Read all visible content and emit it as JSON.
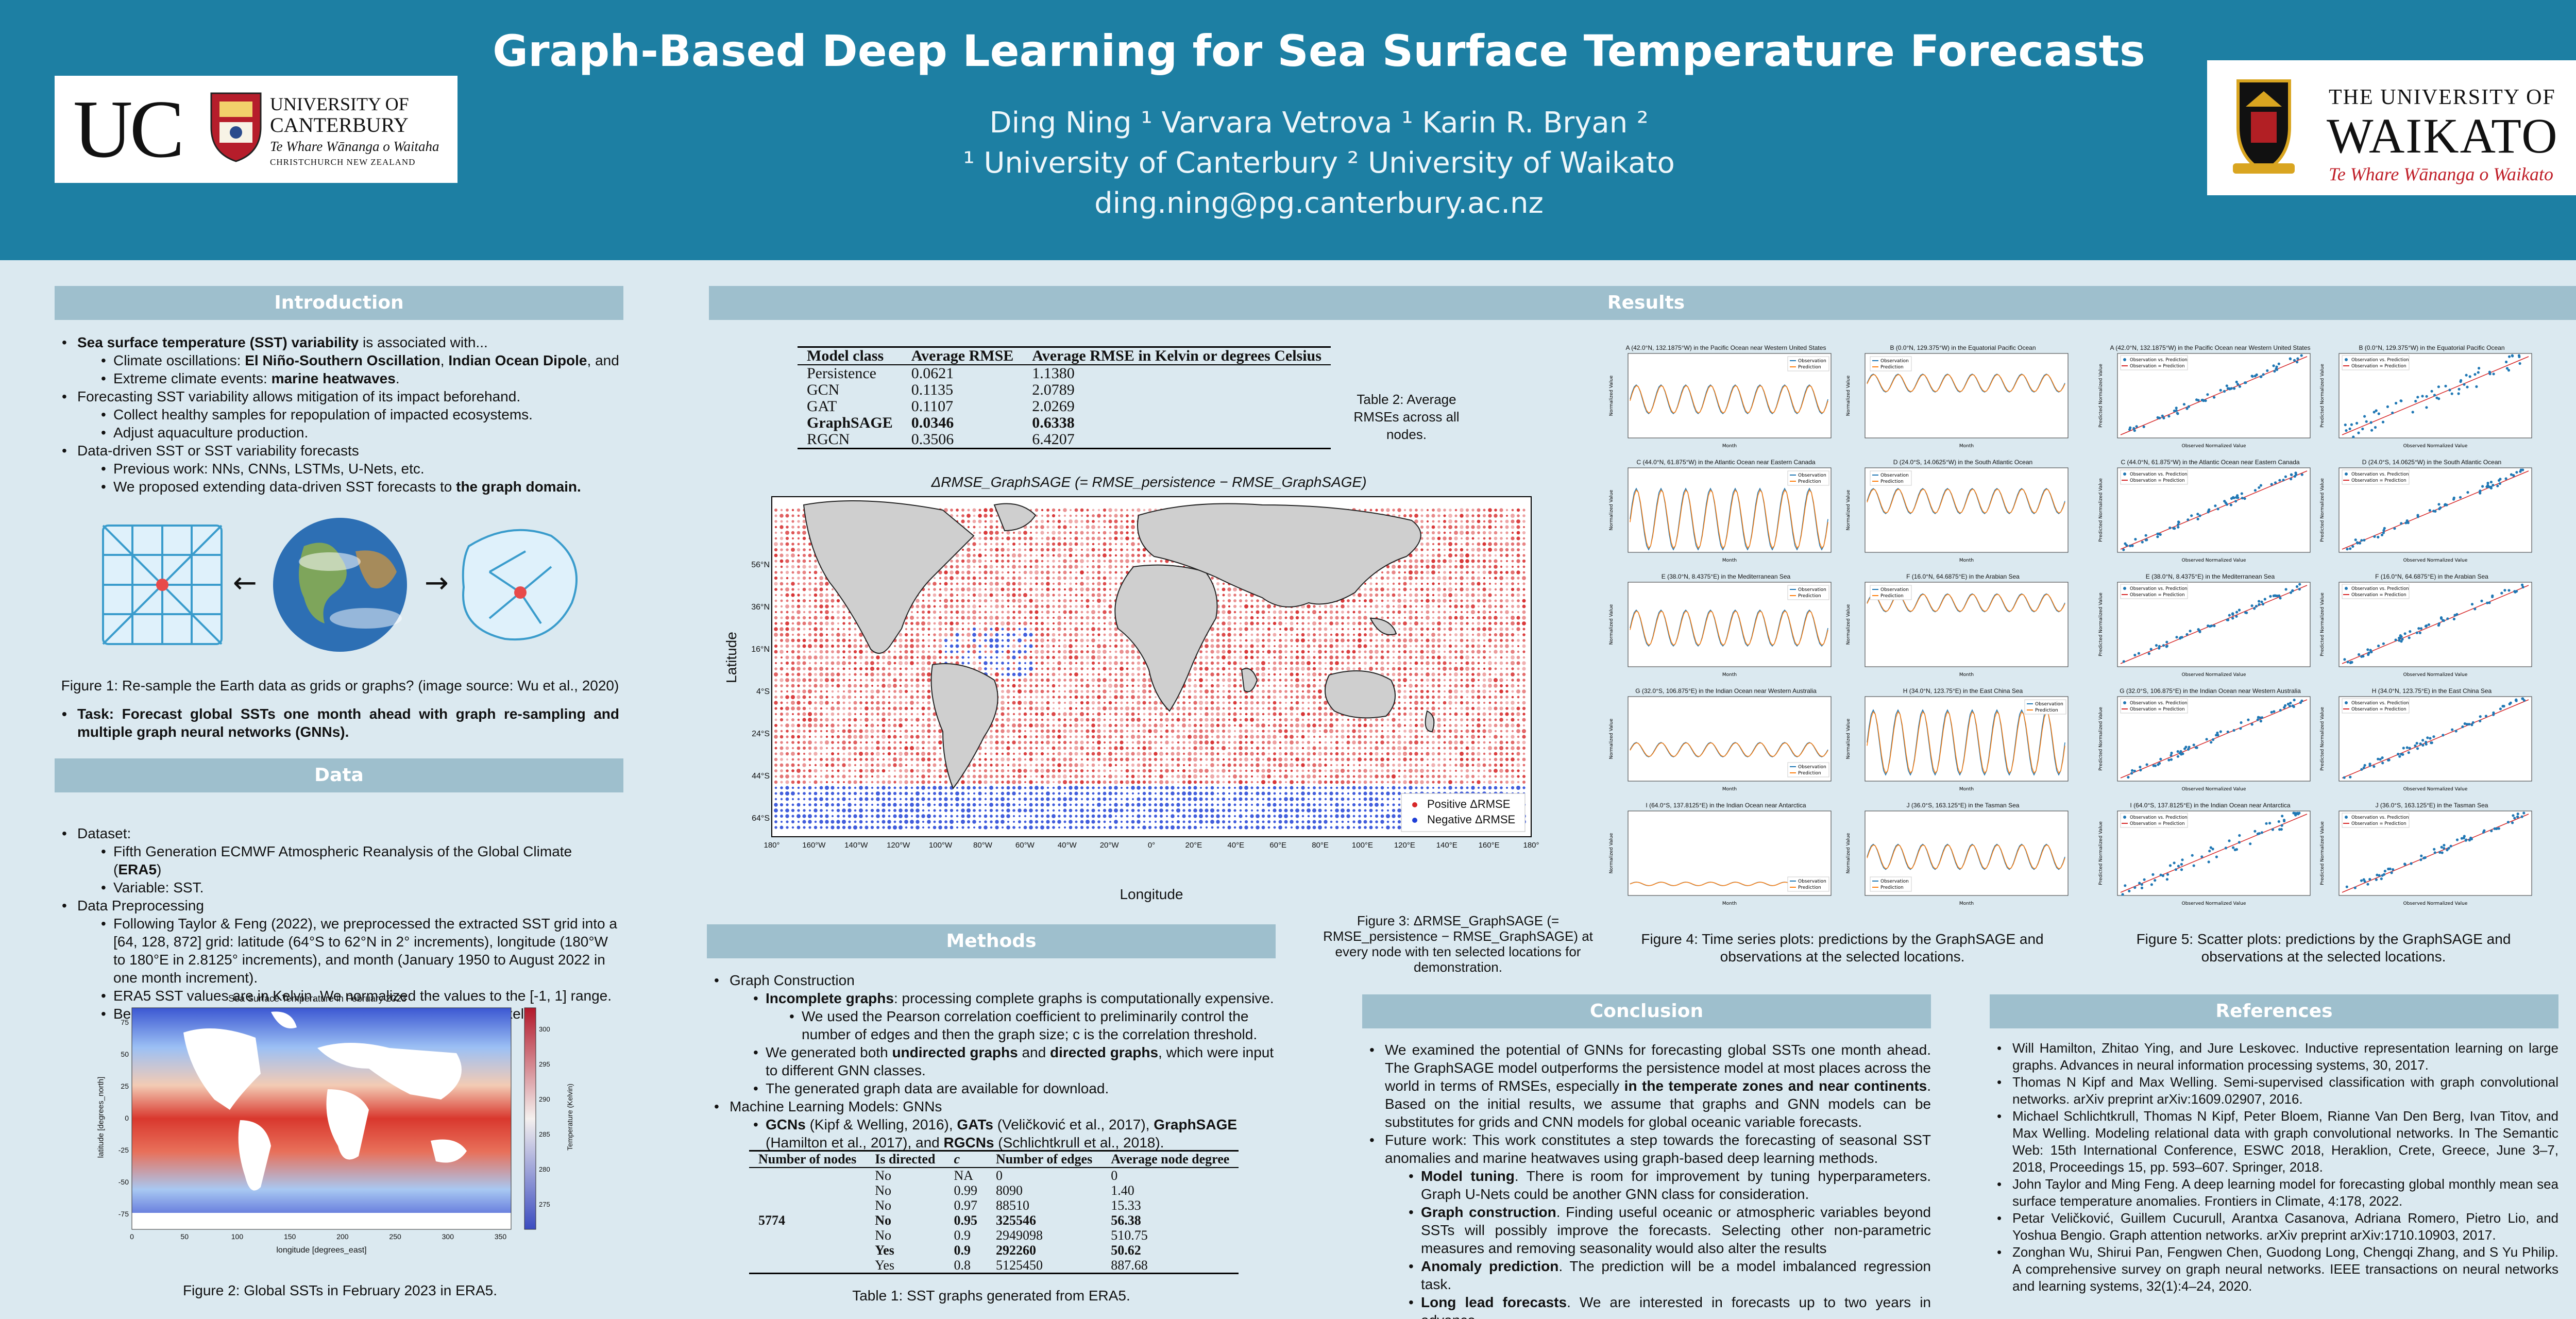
{
  "header": {
    "title": "Graph-Based Deep Learning for Sea Surface Temperature Forecasts",
    "authors": "Ding Ning ¹  Varvara Vetrova ¹  Karin R. Bryan ²",
    "affiliations": "¹ University of Canterbury  ² University of Waikato",
    "email": "ding.ning@pg.canterbury.ac.nz"
  },
  "logos": {
    "uc_mark": "UC",
    "uc_line1": "UNIVERSITY OF",
    "uc_line2": "CANTERBURY",
    "uc_line3": "Te Whare Wānanga o Waitaha",
    "uc_line4": "CHRISTCHURCH NEW ZEALAND",
    "waikato_line1": "THE UNIVERSITY OF",
    "waikato_line2": "WAIKATO",
    "waikato_line3": "Te Whare Wānanga o Waikato"
  },
  "sections": {
    "introduction": "Introduction",
    "data": "Data",
    "results": "Results",
    "methods": "Methods",
    "conclusion": "Conclusion",
    "references": "References"
  },
  "intro": {
    "b1_strong": "Sea surface temperature (SST) variability",
    "b1_rest": " is associated with...",
    "b1a_pre": "Climate oscillations: ",
    "b1a_s1": "El Niño-Southern Oscillation",
    "b1a_mid": ", ",
    "b1a_s2": "Indian Ocean Dipole",
    "b1a_post": ", and",
    "b1b_pre": "Extreme climate events: ",
    "b1b_s": "marine heatwaves",
    "b1b_post": ".",
    "b2": "Forecasting SST variability allows mitigation of its impact beforehand.",
    "b2a": "Collect healthy samples for repopulation of impacted ecosystems.",
    "b2b": "Adjust aquaculture production.",
    "b3": "Data-driven SST or SST variability forecasts",
    "b3a": "Previous work: NNs, CNNs, LSTMs, U-Nets, etc.",
    "b3b_pre": "We proposed extending data-driven SST forecasts to ",
    "b3b_s": "the graph domain.",
    "fig1_caption": "Figure 1: Re-sample the Earth data as grids or graphs? (image source: Wu et al., 2020)",
    "task_text": "Task: Forecast global SSTs one month ahead with graph re-sampling and multiple graph neural networks (GNNs)."
  },
  "data_section": {
    "b1": "Dataset:",
    "b1a_pre": "Fifth Generation ECMWF Atmospheric Reanalysis of the Global Climate (",
    "b1a_s": "ERA5",
    "b1a_post": ")",
    "b1b": "Variable: SST.",
    "b2": "Data Preprocessing",
    "b2a": "Following Taylor & Feng (2022), we preprocessed the extracted SST grid into a [64, 128, 872] grid: latitude (64°S to 62°N in 2° increments), longitude (180°W to 180°E in 2.8125° increments), and month (January 1950 to August 2022 in one month increment).",
    "b2b": "ERA5 SST values are in Kelvin. We normalized the values to the [-1, 1] range.",
    "b2c": "Because we used graphs as input, we kept NAs at the land pixels.",
    "fig2_title": "Sea Surface Temperature in February 2023",
    "fig2_xlabel": "longitude [degrees_east]",
    "fig2_ylabel": "latitude [degrees_north]",
    "fig2_cbar_label": "Temperature (Kelvin)",
    "fig2_xticks": [
      "0",
      "50",
      "100",
      "150",
      "200",
      "250",
      "300",
      "350"
    ],
    "fig2_yticks": [
      "75",
      "50",
      "25",
      "0",
      "-25",
      "-50",
      "-75"
    ],
    "fig2_cticks": [
      "300",
      "295",
      "290",
      "285",
      "280",
      "275"
    ],
    "fig2_caption": "Figure 2: Global SSTs in February 2023 in ERA5."
  },
  "methods": {
    "b1": "Graph Construction",
    "b1a_s": "Incomplete graphs",
    "b1a_rest": ": processing complete graphs is computationally expensive.",
    "b1a_i": "We used the Pearson correlation coefficient to preliminarily control the number of edges and then the graph size; c is the correlation threshold.",
    "b1b_pre": "We generated both ",
    "b1b_s1": "undirected graphs",
    "b1b_mid": " and ",
    "b1b_s2": "directed graphs",
    "b1b_post": ", which were input to different GNN classes.",
    "b1c": "The generated graph data are available for download.",
    "b2": "Machine Learning Models: GNNs",
    "b2a_s1": "GCNs",
    "b2a_t1": " (Kipf & Welling, 2016), ",
    "b2a_s2": "GATs",
    "b2a_t2": " (Veličković et al., 2017), ",
    "b2a_s3": "GraphSAGE",
    "b2a_t3": " (Hamilton et al., 2017), and ",
    "b2a_s4": "RGCNs",
    "b2a_t4": " (Schlichtkrull et al., 2018).",
    "table_headers": [
      "Number of nodes",
      "Is directed",
      "c",
      "Number of edges",
      "Average node degree"
    ],
    "table_rows": [
      [
        "",
        "No",
        "0",
        "0",
        "0"
      ],
      [
        "",
        "No",
        "0.99",
        "8090",
        "1.40"
      ],
      [
        "",
        "No",
        "0.97",
        "88510",
        "15.33"
      ],
      [
        "5774",
        "No",
        "0.95",
        "325546",
        "56.38"
      ],
      [
        "",
        "No",
        "0.9",
        "2949098",
        "510.75"
      ],
      [
        "",
        "Yes",
        "0.9",
        "292260",
        "50.62"
      ],
      [
        "",
        "Yes",
        "0.8",
        "5125450",
        "887.68"
      ]
    ],
    "na_cell": "NA",
    "table_caption": "Table 1: SST graphs generated from ERA5."
  },
  "results": {
    "table2_headers": [
      "Model class",
      "Average RMSE",
      "Average RMSE in Kelvin or degrees Celsius"
    ],
    "table2_rows": [
      [
        "Persistence",
        "0.0621",
        "1.1380"
      ],
      [
        "GCN",
        "0.1135",
        "2.0789"
      ],
      [
        "GAT",
        "0.1107",
        "2.0269"
      ],
      [
        "GraphSAGE",
        "0.0346",
        "0.6338"
      ],
      [
        "RGCN",
        "0.3506",
        "6.4207"
      ]
    ],
    "table2_caption": "Table 2: Average RMSEs across all nodes.",
    "fig3_title": "ΔRMSE_GraphSAGE (= RMSE_persistence − RMSE_GraphSAGE)",
    "fig3_xlabel": "Longitude",
    "fig3_ylabel": "Latitude",
    "fig3_xticks": [
      "180°",
      "160°W",
      "140°W",
      "120°W",
      "100°W",
      "80°W",
      "60°W",
      "40°W",
      "20°W",
      "0°",
      "20°E",
      "40°E",
      "60°E",
      "80°E",
      "100°E",
      "120°E",
      "140°E",
      "160°E",
      "180°"
    ],
    "fig3_yticks": [
      "56°N",
      "36°N",
      "16°N",
      "4°S",
      "24°S",
      "44°S",
      "64°S"
    ],
    "fig3_points": [
      "A",
      "B",
      "C",
      "D",
      "E",
      "F",
      "G",
      "H",
      "I",
      "J"
    ],
    "fig3_legend_pos": "Positive ΔRMSE",
    "fig3_legend_neg": "Negative ΔRMSE",
    "fig3_caption": "Figure 3: ΔRMSE_GraphSAGE (= RMSE_persistence − RMSE_GraphSAGE) at every node with ten selected locations for demonstration.",
    "fig4_caption": "Figure 4: Time series plots: predictions by the GraphSAGE and observations at the selected locations.",
    "fig5_caption": "Figure 5: Scatter plots: predictions by the GraphSAGE and observations at the selected locations.",
    "ts_titles": [
      "A (42.0°N, 132.1875°W) in the Pacific Ocean near Western United States",
      "B (0.0°N, 129.375°W) in the Equatorial Pacific Ocean",
      "C (44.0°N, 61.875°W) in the Atlantic Ocean near Eastern Canada",
      "D (24.0°S, 14.0625°W) in the South Atlantic Ocean",
      "E (38.0°N, 8.4375°E) in the Mediterranean Sea",
      "F (16.0°N, 64.6875°E) in the Arabian Sea",
      "G (32.0°S, 106.875°E) in the Indian Ocean near Western Australia",
      "H (34.0°N, 123.75°E) in the East China Sea",
      "I (64.0°S, 137.8125°E) in the Indian Ocean near Antarctica",
      "J (36.0°S, 163.125°E) in the Tasman Sea"
    ],
    "ts_legend_obs": "Observation",
    "ts_legend_pred": "Prediction",
    "ts_xlabel": "Month",
    "ts_ylabel": "Normalized Value",
    "sc_legend_obs": "Observation vs. Prediction",
    "sc_legend_line": "Observation = Prediction",
    "sc_xlabel": "Observed Normalized Value",
    "sc_ylabel": "Predicted Normalized Value"
  },
  "conclusion": {
    "b1_pre": "We examined the potential of GNNs for forecasting global SSTs one month ahead. The GraphSAGE model outperforms the persistence model at most places across the world in terms of RMSEs, especially ",
    "b1_s": "in the temperate zones and near continents",
    "b1_post": ". Based on the initial results, we assume that graphs and GNN models can be substitutes for grids and CNN models for global oceanic variable forecasts.",
    "b2": "Future work: This work constitutes a step towards the forecasting of seasonal SST anomalies and marine heatwaves using graph-based deep learning methods.",
    "b2a_s": "Model tuning",
    "b2a_r": ". There is room for improvement by tuning hyperparameters. Graph U-Nets could be another GNN class for consideration.",
    "b2b_s": "Graph construction",
    "b2b_r": ". Finding useful oceanic or atmospheric variables beyond SSTs will possibly improve the forecasts. Selecting other non-parametric measures and removing seasonality would also alter the results",
    "b2c_s": "Anomaly prediction",
    "b2c_r": ". The prediction will be a model imbalanced regression task.",
    "b2d_s": "Long lead forecasts",
    "b2d_r": ". We are interested in forecasts up to two years in advance."
  },
  "references": [
    "Will Hamilton, Zhitao Ying, and Jure Leskovec. Inductive representation learning on large graphs. Advances in neural information processing systems, 30, 2017.",
    "Thomas N Kipf and Max Welling. Semi-supervised classification with graph convolutional networks. arXiv preprint arXiv:1609.02907, 2016.",
    "Michael Schlichtkrull, Thomas N Kipf, Peter Bloem, Rianne Van Den Berg, Ivan Titov, and Max Welling. Modeling relational data with graph convolutional networks. In The Semantic Web: 15th International Conference, ESWC 2018, Heraklion, Crete, Greece, June 3–7, 2018, Proceedings 15, pp. 593–607. Springer, 2018.",
    "John Taylor and Ming Feng. A deep learning model for forecasting global monthly mean sea surface temperature anomalies. Frontiers in Climate, 4:178, 2022.",
    "Petar Veličković, Guillem Cucurull, Arantxa Casanova, Adriana Romero, Pietro Lio, and Yoshua Bengio. Graph attention networks. arXiv preprint arXiv:1710.10903, 2017.",
    "Zonghan Wu, Shirui Pan, Fengwen Chen, Guodong Long, Chengqi Zhang, and S Yu Philip. A comprehensive survey on graph neural networks. IEEE transactions on neural networks and learning systems, 32(1):4–24, 2020."
  ],
  "colors": {
    "header_bg": "#1d7fa3",
    "section_bar": "#9ebfcd",
    "page_bg": "#dbe9f0",
    "obs_line": "#1f77b4",
    "pred_line": "#ff7f0e",
    "positive": "#d62728",
    "negative": "#1f3fd6"
  }
}
